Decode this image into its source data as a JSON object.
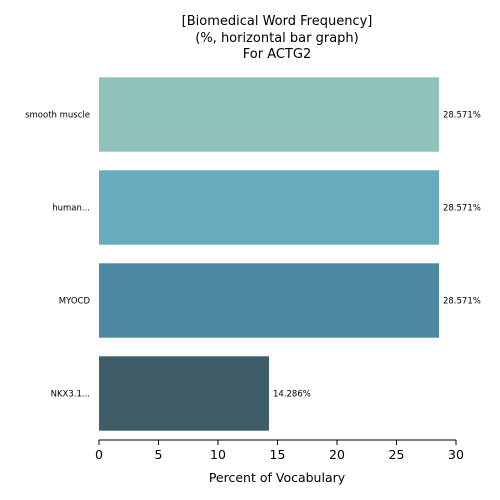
{
  "chart_data": {
    "type": "bar",
    "orientation": "horizontal",
    "title_lines": [
      "[Biomedical Word Frequency]",
      "(%, horizontal bar graph)",
      "For ACTG2"
    ],
    "categories": [
      "smooth muscle",
      "human...",
      "MYOCD",
      "NKX3.1..."
    ],
    "values": [
      28.571,
      28.571,
      28.571,
      14.286
    ],
    "value_labels": [
      "28.571%",
      "28.571%",
      "28.571%",
      "14.286%"
    ],
    "colors": [
      "#8fc3ba",
      "#67abbd",
      "#4d88a3",
      "#3f5d68"
    ],
    "xlabel": "Percent of Vocabulary",
    "xlim": [
      0,
      30
    ],
    "xticks": [
      0,
      5,
      10,
      15,
      20,
      25,
      30
    ],
    "grid": false
  }
}
